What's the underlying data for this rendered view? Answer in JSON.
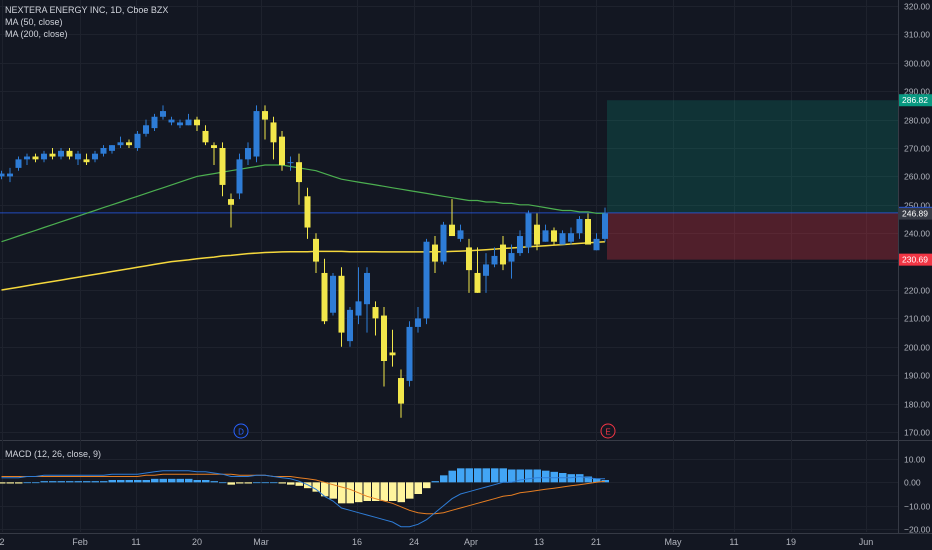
{
  "header": {
    "symbol_line": "NEXTERA ENERGY INC, 1D, Cboe BZX",
    "ma50_label": "MA (50, close)",
    "ma200_label": "MA (200, close)"
  },
  "macd": {
    "label": "MACD (12, 26, close, 9)",
    "y_ticks": [
      "10.00",
      "0.00",
      "−10.00",
      "−20.00"
    ],
    "ylim": [
      -22,
      13
    ]
  },
  "markers": {
    "dividend": "D",
    "earnings": "E"
  },
  "price_tags": [
    {
      "label": "286.82",
      "value": 286.82,
      "color": "#089981"
    },
    {
      "label": "247.17",
      "value": 247.17,
      "color": "#2962ff"
    },
    {
      "label": "246.89",
      "value": 246.89,
      "color": "#363a45"
    },
    {
      "label": "230.69",
      "value": 230.69,
      "color": "#f23645"
    }
  ],
  "colors": {
    "up": "#2e7cd6",
    "down": "#f2e74b",
    "ma50": "#4caf50",
    "ma200": "#f5d83d",
    "macd_line": "#2e7cd6",
    "signal_line": "#e67e22",
    "hist_pos": "#42a5f5",
    "hist_neg": "#fff59d"
  },
  "chart_data": {
    "type": "candlestick",
    "title": "NEXTERA ENERGY INC, 1D, Cboe BZX",
    "x_tick_labels": [
      "2",
      "Feb",
      "11",
      "20",
      "Mar",
      "16",
      "24",
      "Apr",
      "13",
      "21",
      "May",
      "11",
      "19",
      "Jun"
    ],
    "y_ticks": [
      170,
      180,
      190,
      200,
      210,
      220,
      230,
      240,
      250,
      260,
      270,
      280,
      290,
      300,
      310,
      320
    ],
    "ylim": [
      166,
      322
    ],
    "candles": [
      {
        "o": 260,
        "h": 262,
        "l": 259,
        "c": 261
      },
      {
        "o": 260,
        "h": 263,
        "l": 258,
        "c": 261
      },
      {
        "o": 263,
        "h": 267,
        "l": 262,
        "c": 266
      },
      {
        "o": 266,
        "h": 268,
        "l": 264,
        "c": 267
      },
      {
        "o": 267,
        "h": 268,
        "l": 265,
        "c": 266
      },
      {
        "o": 266,
        "h": 269,
        "l": 265,
        "c": 268
      },
      {
        "o": 268,
        "h": 270,
        "l": 266,
        "c": 267
      },
      {
        "o": 267,
        "h": 270,
        "l": 266,
        "c": 269
      },
      {
        "o": 269,
        "h": 270,
        "l": 266,
        "c": 267
      },
      {
        "o": 266,
        "h": 269,
        "l": 264,
        "c": 268
      },
      {
        "o": 266,
        "h": 268,
        "l": 264,
        "c": 265
      },
      {
        "o": 266,
        "h": 269,
        "l": 265,
        "c": 268
      },
      {
        "o": 268,
        "h": 271,
        "l": 267,
        "c": 270
      },
      {
        "o": 269,
        "h": 271,
        "l": 268,
        "c": 271
      },
      {
        "o": 271,
        "h": 274,
        "l": 270,
        "c": 272
      },
      {
        "o": 272,
        "h": 273,
        "l": 270,
        "c": 271
      },
      {
        "o": 270,
        "h": 276,
        "l": 269,
        "c": 275
      },
      {
        "o": 275,
        "h": 280,
        "l": 274,
        "c": 278
      },
      {
        "o": 277,
        "h": 282,
        "l": 276,
        "c": 281
      },
      {
        "o": 281,
        "h": 285,
        "l": 280,
        "c": 283
      },
      {
        "o": 279,
        "h": 281,
        "l": 278,
        "c": 280
      },
      {
        "o": 278,
        "h": 280,
        "l": 277,
        "c": 279
      },
      {
        "o": 278,
        "h": 282,
        "l": 278,
        "c": 280
      },
      {
        "o": 280,
        "h": 281,
        "l": 276,
        "c": 278
      },
      {
        "o": 276,
        "h": 278,
        "l": 271,
        "c": 272
      },
      {
        "o": 271,
        "h": 272,
        "l": 264,
        "c": 270
      },
      {
        "o": 270,
        "h": 272,
        "l": 253,
        "c": 257
      },
      {
        "o": 252,
        "h": 254,
        "l": 242,
        "c": 250
      },
      {
        "o": 254,
        "h": 268,
        "l": 252,
        "c": 266
      },
      {
        "o": 266,
        "h": 272,
        "l": 264,
        "c": 270
      },
      {
        "o": 267,
        "h": 285,
        "l": 265,
        "c": 283
      },
      {
        "o": 283,
        "h": 285,
        "l": 273,
        "c": 280
      },
      {
        "o": 279,
        "h": 281,
        "l": 266,
        "c": 272
      },
      {
        "o": 274,
        "h": 276,
        "l": 262,
        "c": 264
      },
      {
        "o": 265,
        "h": 267,
        "l": 262,
        "c": 265
      },
      {
        "o": 265,
        "h": 268,
        "l": 250,
        "c": 258
      },
      {
        "o": 253,
        "h": 256,
        "l": 238,
        "c": 242
      },
      {
        "o": 238,
        "h": 240,
        "l": 226,
        "c": 230
      },
      {
        "o": 226,
        "h": 231,
        "l": 208,
        "c": 209
      },
      {
        "o": 212,
        "h": 226,
        "l": 211,
        "c": 225
      },
      {
        "o": 225,
        "h": 228,
        "l": 200,
        "c": 205
      },
      {
        "o": 202,
        "h": 214,
        "l": 200,
        "c": 213
      },
      {
        "o": 211,
        "h": 228,
        "l": 208,
        "c": 216
      },
      {
        "o": 215,
        "h": 228,
        "l": 205,
        "c": 226
      },
      {
        "o": 214,
        "h": 216,
        "l": 204,
        "c": 210
      },
      {
        "o": 211,
        "h": 214,
        "l": 186,
        "c": 195
      },
      {
        "o": 198,
        "h": 206,
        "l": 193,
        "c": 197
      },
      {
        "o": 189,
        "h": 192,
        "l": 175,
        "c": 180
      },
      {
        "o": 188,
        "h": 209,
        "l": 186,
        "c": 207
      },
      {
        "o": 207,
        "h": 214,
        "l": 205,
        "c": 210
      },
      {
        "o": 210,
        "h": 238,
        "l": 208,
        "c": 237
      },
      {
        "o": 236,
        "h": 239,
        "l": 226,
        "c": 230
      },
      {
        "o": 230,
        "h": 244,
        "l": 229,
        "c": 243
      },
      {
        "o": 243,
        "h": 252,
        "l": 239,
        "c": 239
      },
      {
        "o": 238,
        "h": 243,
        "l": 237,
        "c": 241
      },
      {
        "o": 235,
        "h": 238,
        "l": 219,
        "c": 227
      },
      {
        "o": 226,
        "h": 235,
        "l": 219,
        "c": 219
      },
      {
        "o": 225,
        "h": 233,
        "l": 219,
        "c": 229
      },
      {
        "o": 229,
        "h": 235,
        "l": 228,
        "c": 232
      },
      {
        "o": 236,
        "h": 239,
        "l": 227,
        "c": 229
      },
      {
        "o": 230,
        "h": 236,
        "l": 224,
        "c": 233
      },
      {
        "o": 233,
        "h": 241,
        "l": 232,
        "c": 239
      },
      {
        "o": 235,
        "h": 248,
        "l": 233,
        "c": 247
      },
      {
        "o": 243,
        "h": 247,
        "l": 234,
        "c": 236
      },
      {
        "o": 237,
        "h": 243,
        "l": 237,
        "c": 241
      },
      {
        "o": 241,
        "h": 242,
        "l": 236,
        "c": 237
      },
      {
        "o": 236,
        "h": 241,
        "l": 236,
        "c": 240
      },
      {
        "o": 237,
        "h": 242,
        "l": 236,
        "c": 240
      },
      {
        "o": 240,
        "h": 246,
        "l": 238,
        "c": 245
      },
      {
        "o": 245,
        "h": 247,
        "l": 236,
        "c": 236
      },
      {
        "o": 234,
        "h": 240,
        "l": 234,
        "c": 238
      },
      {
        "o": 238,
        "h": 249,
        "l": 237,
        "c": 247
      }
    ],
    "ma50": [
      237,
      238,
      239,
      240,
      241,
      242,
      243,
      244,
      245,
      246,
      247,
      248,
      249,
      250,
      251,
      252,
      253,
      254,
      255,
      256,
      257,
      258,
      259,
      260,
      260.5,
      261,
      261.5,
      262,
      262.5,
      263,
      263.5,
      264,
      264,
      264,
      263.5,
      263,
      262.5,
      262,
      261,
      260,
      259,
      258.5,
      258,
      257.5,
      257,
      256.5,
      256,
      255.5,
      255,
      254.5,
      254,
      253.5,
      253,
      252.5,
      252,
      251.5,
      251.5,
      251,
      251,
      250.5,
      250.5,
      250,
      250,
      249.5,
      249,
      248.5,
      248,
      248,
      247.5,
      247.5,
      247,
      247
    ],
    "ma200": [
      220,
      220.5,
      221,
      221.5,
      222,
      222.5,
      223,
      223.5,
      224,
      224.5,
      225,
      225.5,
      226,
      226.5,
      227,
      227.5,
      228,
      228.5,
      229,
      229.5,
      230,
      230.3,
      230.6,
      231,
      231.3,
      231.6,
      232,
      232.2,
      232.5,
      232.8,
      233,
      233.2,
      233.3,
      233.4,
      233.5,
      233.5,
      233.5,
      233.6,
      233.6,
      233.6,
      233.6,
      233.5,
      233.5,
      233.5,
      233.5,
      233.4,
      233.4,
      233.4,
      233.4,
      233.4,
      233.4,
      233.5,
      233.5,
      233.6,
      233.7,
      233.8,
      234,
      234.2,
      234.4,
      234.6,
      234.8,
      235,
      235.2,
      235.4,
      235.6,
      235.8,
      236,
      236.2,
      236.4,
      236.6,
      236.8,
      237
    ],
    "position": {
      "target": 286.82,
      "entry": 247.17,
      "stop": 230.69
    },
    "macd_line": [
      2,
      2,
      2,
      2.5,
      2.5,
      3,
      3,
      3,
      3,
      3,
      3,
      3,
      3,
      3.5,
      3.5,
      3.5,
      3.5,
      4,
      4.5,
      5,
      5,
      5,
      5,
      4.5,
      4.5,
      4,
      3.5,
      2.5,
      2.5,
      2.5,
      3,
      3,
      2.5,
      2,
      1.5,
      0.5,
      -1,
      -3,
      -6,
      -8,
      -11,
      -12,
      -13,
      -14,
      -15,
      -16,
      -17,
      -19,
      -19,
      -18,
      -16,
      -13,
      -10,
      -7,
      -5,
      -4,
      -3,
      -2,
      -1,
      0,
      0,
      1,
      1.5,
      2,
      2,
      2,
      2,
      2,
      2.5,
      2,
      1.5,
      1.5
    ],
    "signal_line": [
      2.5,
      2.5,
      2.5,
      2.5,
      2.5,
      2.5,
      2.5,
      2.5,
      2.5,
      2.5,
      2.5,
      2.5,
      2.5,
      2.5,
      2.5,
      2.5,
      2.5,
      3,
      3,
      3.5,
      3.5,
      3.5,
      3.5,
      3.5,
      3.5,
      3.5,
      3.5,
      3.5,
      3,
      3,
      3,
      3,
      2.5,
      2.5,
      2.5,
      2,
      1.5,
      1,
      0,
      -1,
      -2,
      -3,
      -4.5,
      -6,
      -7,
      -8,
      -9,
      -10.5,
      -12,
      -13,
      -13.5,
      -13.5,
      -13,
      -12,
      -11,
      -10,
      -9,
      -8,
      -7,
      -6,
      -5.5,
      -4.5,
      -4,
      -3.5,
      -3,
      -2.5,
      -2,
      -1.5,
      -1,
      -0.5,
      0,
      0.5
    ],
    "histogram": [
      -0.5,
      -0.5,
      -0.5,
      0,
      0,
      0.5,
      0.5,
      0.5,
      0.5,
      0.5,
      0.5,
      0.5,
      0.5,
      1,
      1,
      1,
      1,
      1,
      1.5,
      1.5,
      1.5,
      1.5,
      1.5,
      1,
      1,
      0.5,
      0,
      -1,
      -0.5,
      -0.5,
      0,
      0,
      0,
      -0.5,
      -1,
      -1.5,
      -2.5,
      -4,
      -6,
      -7,
      -9,
      -9,
      -8.5,
      -8,
      -8,
      -8,
      -8,
      -8.5,
      -7,
      -5,
      -2.5,
      0.5,
      3,
      5,
      6,
      6,
      6,
      6,
      6,
      6,
      5.5,
      5.5,
      5.5,
      5.5,
      5,
      4.5,
      4,
      3.5,
      3.5,
      2.5,
      1.5,
      1
    ]
  }
}
